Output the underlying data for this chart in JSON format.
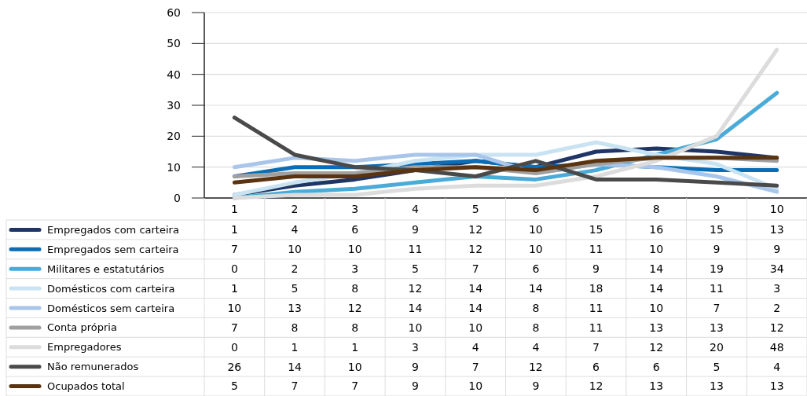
{
  "chart_data": {
    "type": "line",
    "categories": [
      "1",
      "2",
      "3",
      "4",
      "5",
      "6",
      "7",
      "8",
      "9",
      "10"
    ],
    "series": [
      {
        "name": "Empregados com carteira",
        "color": "#1f3566",
        "values": [
          1,
          4,
          6,
          9,
          12,
          10,
          15,
          16,
          15,
          13
        ]
      },
      {
        "name": "Empregados sem carteira",
        "color": "#0a6db5",
        "values": [
          7,
          10,
          10,
          11,
          12,
          10,
          11,
          10,
          9,
          9
        ]
      },
      {
        "name": "Militares e estatutários",
        "color": "#4aaad8",
        "values": [
          0,
          2,
          3,
          5,
          7,
          6,
          9,
          14,
          19,
          34
        ]
      },
      {
        "name": "Domésticos com carteira",
        "color": "#c9e3f3",
        "values": [
          1,
          5,
          8,
          12,
          14,
          14,
          18,
          14,
          11,
          3
        ]
      },
      {
        "name": "Domésticos sem carteira",
        "color": "#a9c6ea",
        "values": [
          10,
          13,
          12,
          14,
          14,
          8,
          11,
          10,
          7,
          2
        ]
      },
      {
        "name": "Conta própria",
        "color": "#a0a0a0",
        "values": [
          7,
          8,
          8,
          10,
          10,
          8,
          11,
          13,
          13,
          12
        ]
      },
      {
        "name": "Empregadores",
        "color": "#dcdcdc",
        "values": [
          0,
          1,
          1,
          3,
          4,
          4,
          7,
          12,
          20,
          48
        ]
      },
      {
        "name": "Não remunerados",
        "color": "#4a4a4a",
        "values": [
          26,
          14,
          10,
          9,
          7,
          12,
          6,
          6,
          5,
          4
        ]
      },
      {
        "name": "Ocupados total",
        "color": "#5a3310",
        "values": [
          5,
          7,
          7,
          9,
          10,
          9,
          12,
          13,
          13,
          13
        ]
      }
    ],
    "ylim": [
      0,
      60
    ],
    "yticks": [
      0,
      10,
      20,
      30,
      40,
      50,
      60
    ],
    "grid": "y",
    "legend": "bottom",
    "data_labels": true,
    "line_style": "solid"
  }
}
